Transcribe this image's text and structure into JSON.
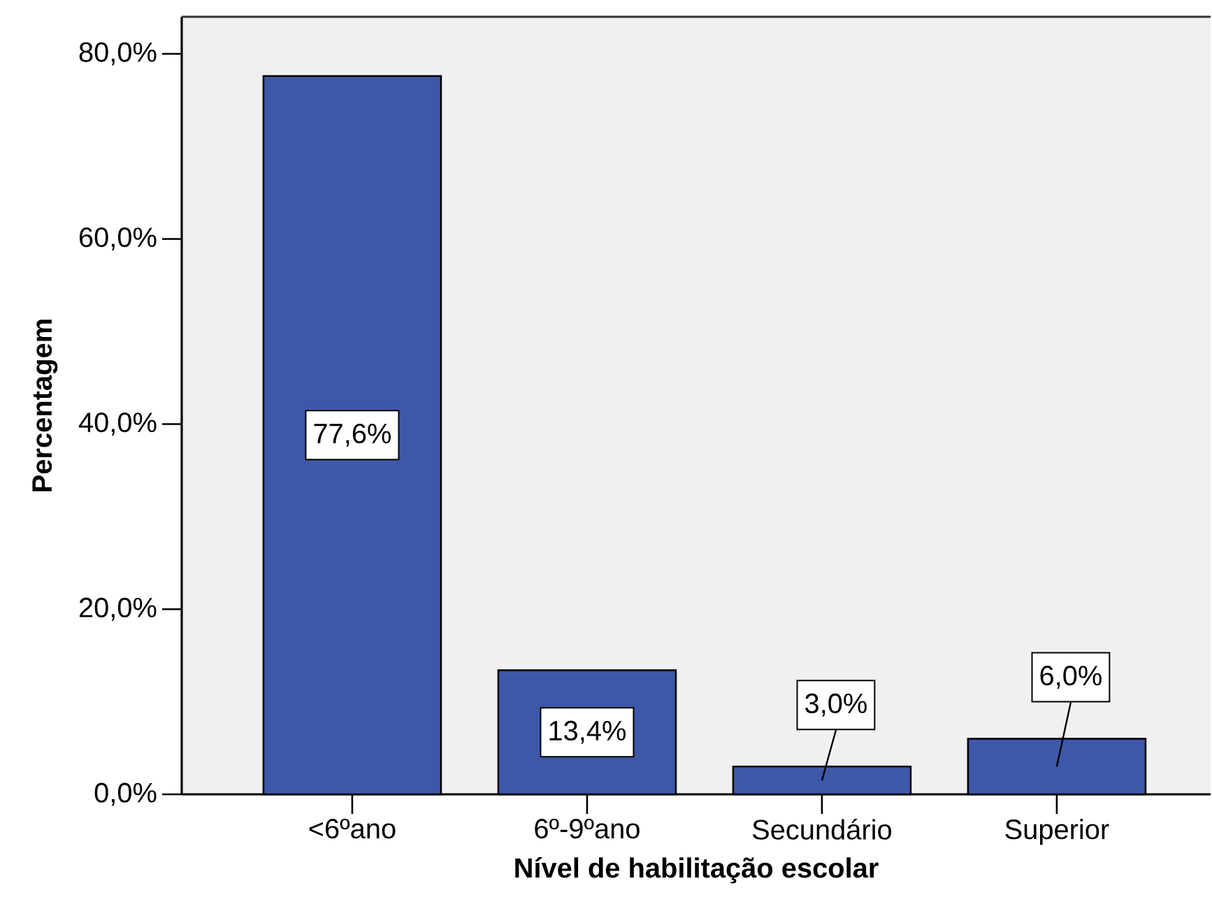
{
  "chart_data": {
    "type": "bar",
    "xlabel": "Nível de habilitação escolar",
    "ylabel": "Percentagem",
    "categories": [
      "<6ºano",
      "6º-9ºano",
      "Secundário",
      "Superior"
    ],
    "values": [
      77.6,
      13.4,
      3.0,
      6.0
    ],
    "value_labels": [
      "77,6%",
      "13,4%",
      "3,0%",
      "6,0%"
    ],
    "color": "#3e58a8",
    "ylim": [
      0,
      84
    ],
    "yticks": [
      {
        "value": 0,
        "label": "0,0%"
      },
      {
        "value": 20,
        "label": "20,0%"
      },
      {
        "value": 40,
        "label": "40,0%"
      },
      {
        "value": 60,
        "label": "60,0%"
      },
      {
        "value": 80,
        "label": "80,0%"
      }
    ]
  }
}
